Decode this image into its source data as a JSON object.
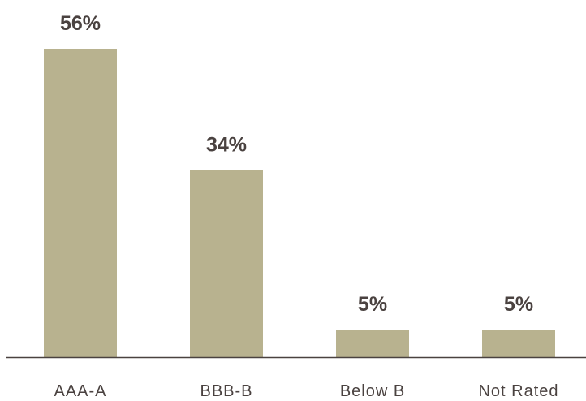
{
  "chart_data": {
    "type": "bar",
    "categories": [
      "AAA-A",
      "BBB-B",
      "Below B",
      "Not Rated"
    ],
    "values": [
      56,
      34,
      5,
      5
    ],
    "value_labels": [
      "56%",
      "34%",
      "5%",
      "5%"
    ],
    "title": "",
    "xlabel": "",
    "ylabel": "",
    "ylim": [
      0,
      56
    ],
    "grid": false,
    "legend": "none",
    "colors": {
      "bar": "#b8b28f",
      "axis": "#4a4240",
      "text": "#4a4240"
    }
  }
}
